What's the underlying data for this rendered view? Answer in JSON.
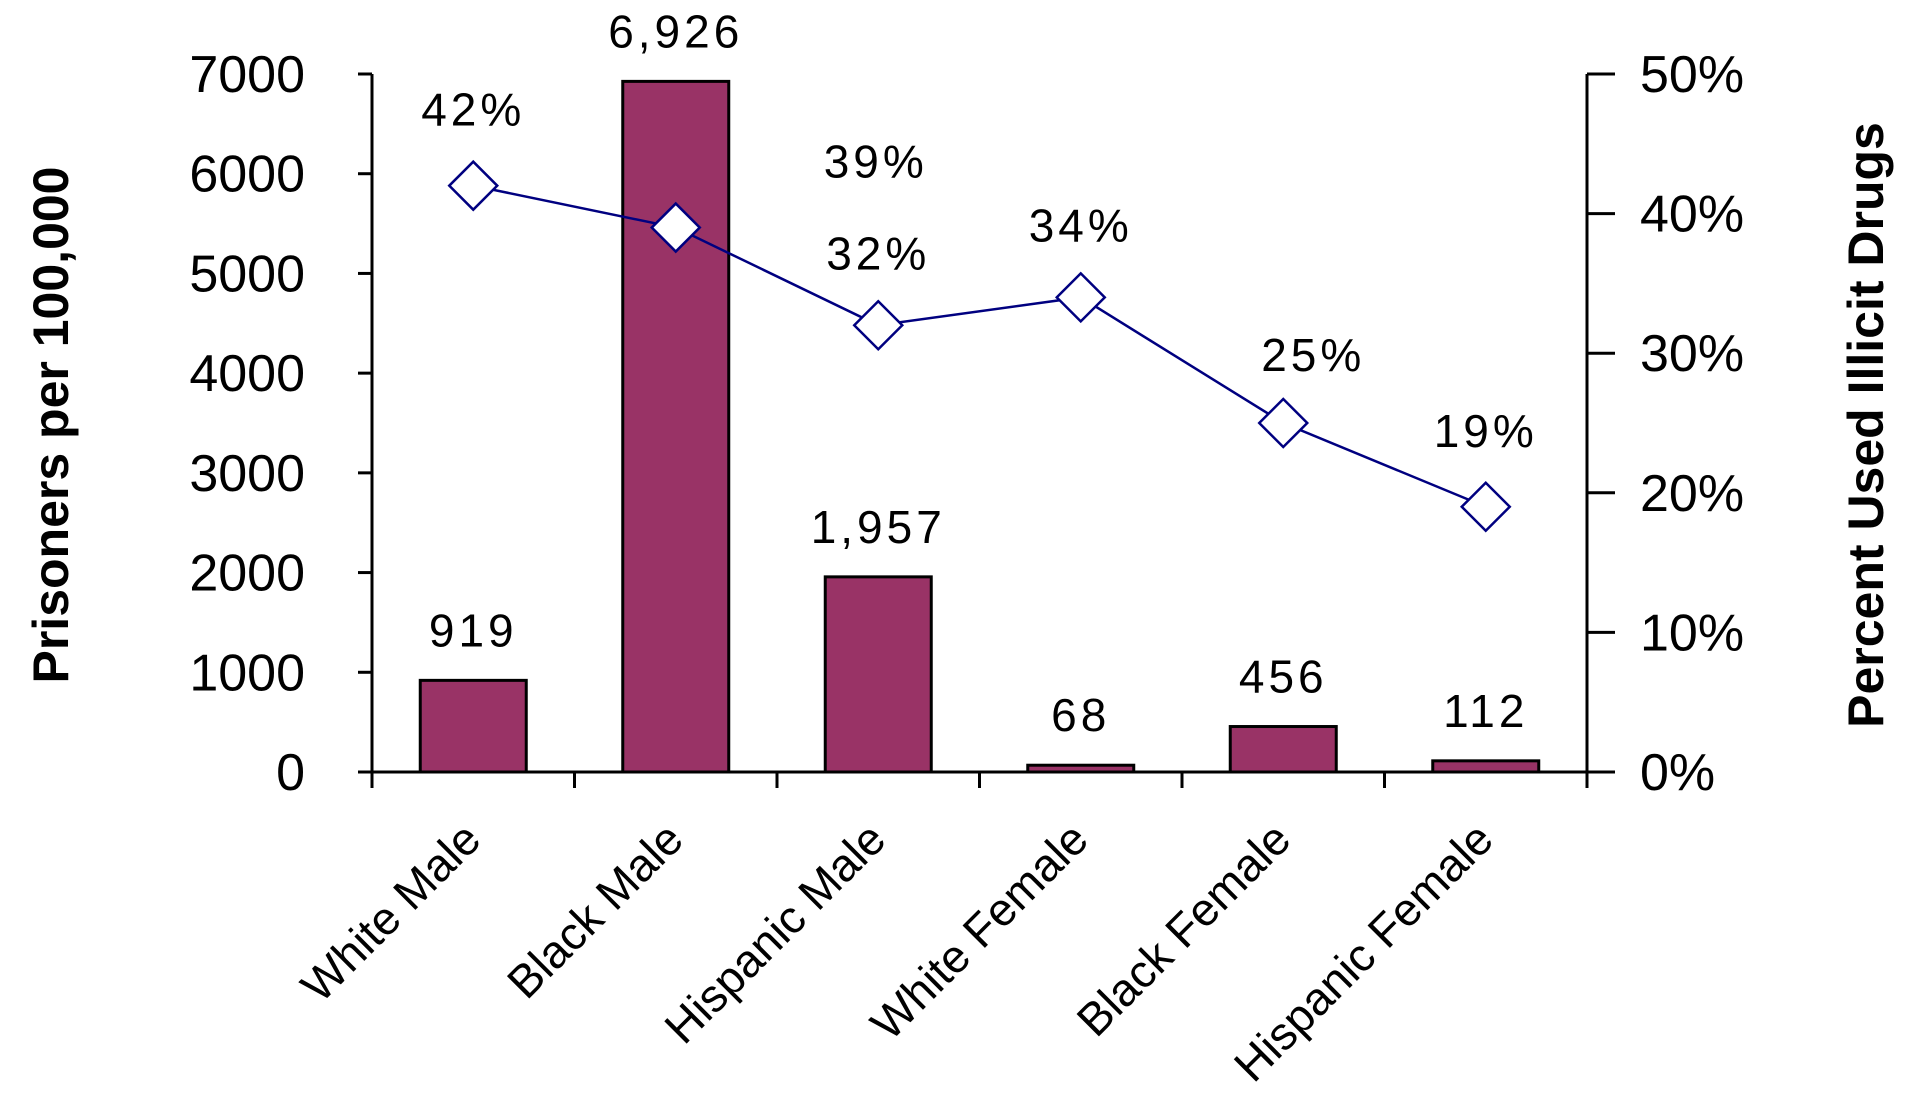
{
  "chart_data": {
    "type": "bar",
    "categories": [
      "White Male",
      "Black Male",
      "Hispanic Male",
      "White Female",
      "Black Female",
      "Hispanic Female"
    ],
    "series": [
      {
        "type": "bar",
        "axis": "left",
        "values": [
          919,
          6926,
          1957,
          68,
          456,
          112
        ],
        "data_labels": [
          "919",
          "6,926",
          "1,957",
          "68",
          "456",
          "112"
        ],
        "color": "#993366"
      },
      {
        "type": "line",
        "axis": "right",
        "values": [
          42,
          39,
          32,
          34,
          25,
          19
        ],
        "data_labels": [
          "42%",
          "39%",
          "32%",
          "34%",
          "25%",
          "19%"
        ],
        "color": "#000080",
        "marker": "open-diamond"
      }
    ],
    "ylabel": "Prisoners per 100,000",
    "ylabel_right": "Percent Used Illicit Drugs",
    "ylim": [
      0,
      7000
    ],
    "yticks": [
      "0",
      "1000",
      "2000",
      "3000",
      "4000",
      "5000",
      "6000",
      "7000"
    ],
    "ylim_right": [
      0,
      50
    ],
    "yticks_right": [
      "0%",
      "10%",
      "20%",
      "30%",
      "40%",
      "50%"
    ],
    "grid": false,
    "legend": "none"
  }
}
